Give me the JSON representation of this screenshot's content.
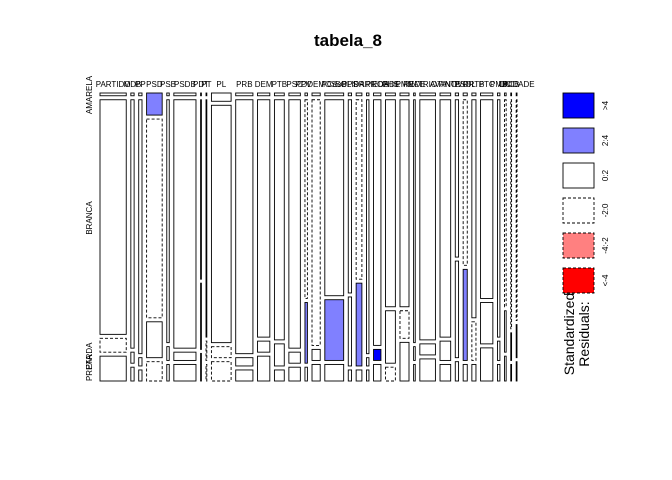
{
  "chart_data": {
    "type": "mosaic",
    "title": "tabela_8",
    "x_variable": "",
    "y_variable": "",
    "column_labels": [
      "PARTIDO",
      "MDB",
      "PP",
      "PSD",
      "PSB",
      "PSDB",
      "PDT",
      "PT",
      "PL",
      "PRB",
      "DEM",
      "PTB",
      "PSC",
      "PV",
      "PODEMOS",
      "PCdoB",
      "PPS",
      "PR",
      "SOLIDARIEDADE",
      "PROS",
      "PHS",
      "PMN",
      "REDE",
      "PATRIOTA",
      "AVANTE",
      "NOVO",
      "PSOL",
      "PRTB",
      "PTC",
      "PMB",
      "DC",
      "PCB",
      "UNIDADE"
    ],
    "row_categories": [
      "AMARELA",
      "BRANCA",
      "PARDA",
      "PRETA"
    ],
    "row_labels_shown": [
      "AMARELA",
      "BRANCA",
      "PARDA",
      "PRETA"
    ],
    "column_widths_pct": [
      3.2,
      0.4,
      0.4,
      1.9,
      0.3,
      2.7,
      0.1,
      0.1,
      2.4,
      2.1,
      1.5,
      1.2,
      1.4,
      0.3,
      1.0,
      2.3,
      0.4,
      0.7,
      0.3,
      0.9,
      1.2,
      1.1,
      0.2,
      1.9,
      1.3,
      0.4,
      0.5,
      0.5,
      1.5,
      0.3,
      0.2,
      0.1,
      0.1
    ],
    "row_proportions": [
      [
        0.01,
        0.85,
        0.05,
        0.09
      ],
      [
        0.01,
        0.9,
        0.04,
        0.05
      ],
      [
        0.01,
        0.92,
        0.03,
        0.04
      ],
      [
        0.08,
        0.72,
        0.13,
        0.07
      ],
      [
        0.01,
        0.88,
        0.05,
        0.06
      ],
      [
        0.01,
        0.9,
        0.03,
        0.06
      ],
      [
        0.01,
        0.65,
        0.24,
        0.1
      ],
      [
        0.01,
        0.86,
        0.07,
        0.06
      ],
      [
        0.03,
        0.86,
        0.04,
        0.07
      ],
      [
        0.01,
        0.92,
        0.03,
        0.04
      ],
      [
        0.01,
        0.86,
        0.04,
        0.09
      ],
      [
        0.01,
        0.87,
        0.08,
        0.04
      ],
      [
        0.01,
        0.9,
        0.04,
        0.05
      ],
      [
        0.01,
        0.72,
        0.22,
        0.05
      ],
      [
        0.01,
        0.89,
        0.04,
        0.06
      ],
      [
        0.01,
        0.71,
        0.22,
        0.06
      ],
      [
        0.01,
        0.7,
        0.25,
        0.04
      ],
      [
        0.01,
        0.65,
        0.3,
        0.04
      ],
      [
        0.01,
        0.92,
        0.03,
        0.04
      ],
      [
        0.01,
        0.89,
        0.04,
        0.06
      ],
      [
        0.01,
        0.75,
        0.19,
        0.05
      ],
      [
        0.01,
        0.75,
        0.1,
        0.14
      ],
      [
        0.01,
        0.88,
        0.05,
        0.06
      ],
      [
        0.01,
        0.87,
        0.04,
        0.08
      ],
      [
        0.01,
        0.86,
        0.07,
        0.06
      ],
      [
        0.01,
        0.57,
        0.35,
        0.07
      ],
      [
        0.01,
        0.6,
        0.33,
        0.06
      ],
      [
        0.01,
        0.79,
        0.14,
        0.06
      ],
      [
        0.01,
        0.72,
        0.15,
        0.12
      ],
      [
        0.01,
        0.86,
        0.07,
        0.06
      ],
      [
        0.01,
        0.75,
        0.15,
        0.09
      ],
      [
        0.01,
        0.83,
        0.1,
        0.06
      ],
      [
        0.01,
        0.8,
        0.12,
        0.07
      ]
    ],
    "residual_classes": [
      [
        "0:2",
        "0:2",
        "-2:0",
        "0:2"
      ],
      [
        "0:2",
        "0:2",
        "0:2",
        "0:2"
      ],
      [
        "0:2",
        "0:2",
        "0:2",
        "0:2"
      ],
      [
        "2:4",
        "-2:0",
        "0:2",
        "-2:0"
      ],
      [
        "0:2",
        "0:2",
        "0:2",
        "0:2"
      ],
      [
        "0:2",
        "0:2",
        "0:2",
        "0:2"
      ],
      [
        ">4",
        "0:2",
        ">4",
        "0:2"
      ],
      [
        "0:2",
        "0:2",
        "-2:0",
        "-2:0"
      ],
      [
        "0:2",
        "0:2",
        "-2:0",
        "-2:0"
      ],
      [
        "0:2",
        "0:2",
        "0:2",
        "0:2"
      ],
      [
        "0:2",
        "0:2",
        "0:2",
        "0:2"
      ],
      [
        "0:2",
        "0:2",
        "0:2",
        "0:2"
      ],
      [
        "0:2",
        "0:2",
        "0:2",
        "0:2"
      ],
      [
        "0:2",
        "-2:0",
        "2:4",
        "0:2"
      ],
      [
        "0:2",
        "-2:0",
        "0:2",
        "0:2"
      ],
      [
        "0:2",
        "0:2",
        "2:4",
        "0:2"
      ],
      [
        "0:2",
        "0:2",
        "0:2",
        "0:2"
      ],
      [
        "0:2",
        "-2:0",
        "2:4",
        "0:2"
      ],
      [
        "0:2",
        "0:2",
        "0:2",
        "0:2"
      ],
      [
        "0:2",
        "0:2",
        ">4",
        "0:2"
      ],
      [
        "0:2",
        "0:2",
        "0:2",
        "-2:0"
      ],
      [
        "0:2",
        "0:2",
        "-2:0",
        "0:2"
      ],
      [
        "0:2",
        "0:2",
        "0:2",
        "0:2"
      ],
      [
        "0:2",
        "0:2",
        "0:2",
        "0:2"
      ],
      [
        "0:2",
        "0:2",
        "0:2",
        "0:2"
      ],
      [
        "0:2",
        "0:2",
        "0:2",
        "0:2"
      ],
      [
        "0:2",
        "-2:0",
        "2:4",
        "0:2"
      ],
      [
        "0:2",
        "0:2",
        "-2:0",
        "0:2"
      ],
      [
        "0:2",
        "0:2",
        "0:2",
        "0:2"
      ],
      [
        "0:2",
        "0:2",
        "0:2",
        "0:2"
      ],
      [
        "0:2",
        "-2:0",
        "0:2",
        "0:2"
      ],
      [
        "0:2",
        "-2:0",
        "0:2",
        "0:2"
      ],
      [
        "0:2",
        "-2:0",
        "0:2",
        "0:2"
      ]
    ],
    "legend": {
      "title_lines": [
        "Standardized",
        "Residuals:"
      ],
      "entries": [
        {
          "label": ">4",
          "fill": "#0000FF",
          "dashed": false
        },
        {
          "label": "2:4",
          "fill": "#8080FF",
          "dashed": false
        },
        {
          "label": "0:2",
          "fill": "#FFFFFF",
          "dashed": false
        },
        {
          "label": "-2:0",
          "fill": "#FFFFFF",
          "dashed": true
        },
        {
          "label": "-4:-2",
          "fill": "#FF8080",
          "dashed": true
        },
        {
          "label": "<-4",
          "fill": "#FF0000",
          "dashed": true
        }
      ]
    },
    "colors": {
      "strong_positive": "#0000FF",
      "positive": "#8080FF",
      "neutral": "#FFFFFF",
      "negative": "#FF8080",
      "strong_negative": "#FF0000",
      "border": "#000000"
    }
  }
}
